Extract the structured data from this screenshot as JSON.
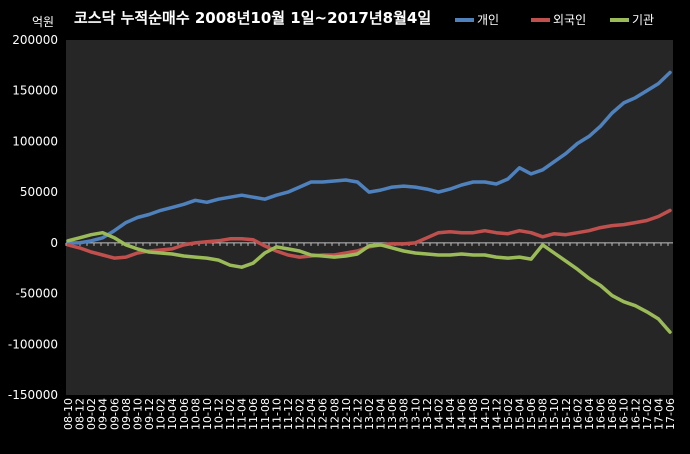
{
  "chart_data": {
    "type": "line",
    "title": "코스닥 누적순매수 2008년10월 1일~2017년8월4일",
    "unit_label": "억원",
    "ylim": [
      -150000,
      200000
    ],
    "yticks": [
      200000,
      150000,
      100000,
      50000,
      0,
      -50000,
      -100000,
      -150000
    ],
    "grid": false,
    "legend_position": "top-right",
    "x": [
      "08-10",
      "08-12",
      "09-02",
      "09-04",
      "09-06",
      "09-08",
      "09-10",
      "09-12",
      "10-02",
      "10-04",
      "10-06",
      "10-08",
      "10-10",
      "10-12",
      "11-02",
      "11-04",
      "11-06",
      "11-08",
      "11-10",
      "11-12",
      "12-02",
      "12-04",
      "12-06",
      "12-08",
      "12-10",
      "12-12",
      "13-02",
      "13-04",
      "13-06",
      "13-08",
      "13-10",
      "13-12",
      "14-02",
      "14-04",
      "14-06",
      "14-08",
      "14-10",
      "14-12",
      "15-02",
      "15-04",
      "15-06",
      "15-08",
      "15-10",
      "15-12",
      "16-02",
      "16-04",
      "16-06",
      "16-08",
      "16-10",
      "16-12",
      "17-02",
      "17-04",
      "17-06"
    ],
    "series": [
      {
        "name": "개인",
        "color": "#4f81bd",
        "values": [
          0,
          0,
          2000,
          5000,
          12000,
          20000,
          25000,
          28000,
          32000,
          35000,
          38000,
          42000,
          40000,
          43000,
          45000,
          47000,
          45000,
          43000,
          47000,
          50000,
          55000,
          60000,
          60000,
          61000,
          62000,
          60000,
          50000,
          52000,
          55000,
          56000,
          55000,
          53000,
          50000,
          53000,
          57000,
          60000,
          60000,
          58000,
          63000,
          74000,
          68000,
          72000,
          80000,
          88000,
          98000,
          105000,
          115000,
          128000,
          138000,
          143000,
          150000,
          157000,
          168000
        ]
      },
      {
        "name": "외국인",
        "color": "#c0504d",
        "values": [
          -2000,
          -5000,
          -9000,
          -12000,
          -15000,
          -14000,
          -10000,
          -8000,
          -7000,
          -6000,
          -2000,
          0,
          1000,
          2000,
          4000,
          4000,
          3000,
          -3000,
          -8000,
          -12000,
          -14000,
          -13000,
          -12000,
          -12000,
          -10000,
          -8000,
          -4000,
          -2000,
          -1000,
          -1000,
          0,
          5000,
          10000,
          11000,
          10000,
          10000,
          12000,
          10000,
          9000,
          12000,
          10000,
          6000,
          9000,
          8000,
          10000,
          12000,
          15000,
          17000,
          18000,
          20000,
          22000,
          26000,
          32000
        ]
      },
      {
        "name": "기관",
        "color": "#9bbb59",
        "values": [
          2000,
          5000,
          8000,
          10000,
          5000,
          -2000,
          -6000,
          -9000,
          -10000,
          -11000,
          -13000,
          -14000,
          -15000,
          -17000,
          -22000,
          -24000,
          -20000,
          -10000,
          -4000,
          -6000,
          -8000,
          -12000,
          -13000,
          -14000,
          -13000,
          -11000,
          -3000,
          -2000,
          -5000,
          -8000,
          -10000,
          -11000,
          -12000,
          -12000,
          -11000,
          -12000,
          -12000,
          -14000,
          -15000,
          -14000,
          -16000,
          -2000,
          -10000,
          -18000,
          -26000,
          -35000,
          -42000,
          -52000,
          -58000,
          -62000,
          -68000,
          -75000,
          -88000
        ]
      }
    ]
  }
}
